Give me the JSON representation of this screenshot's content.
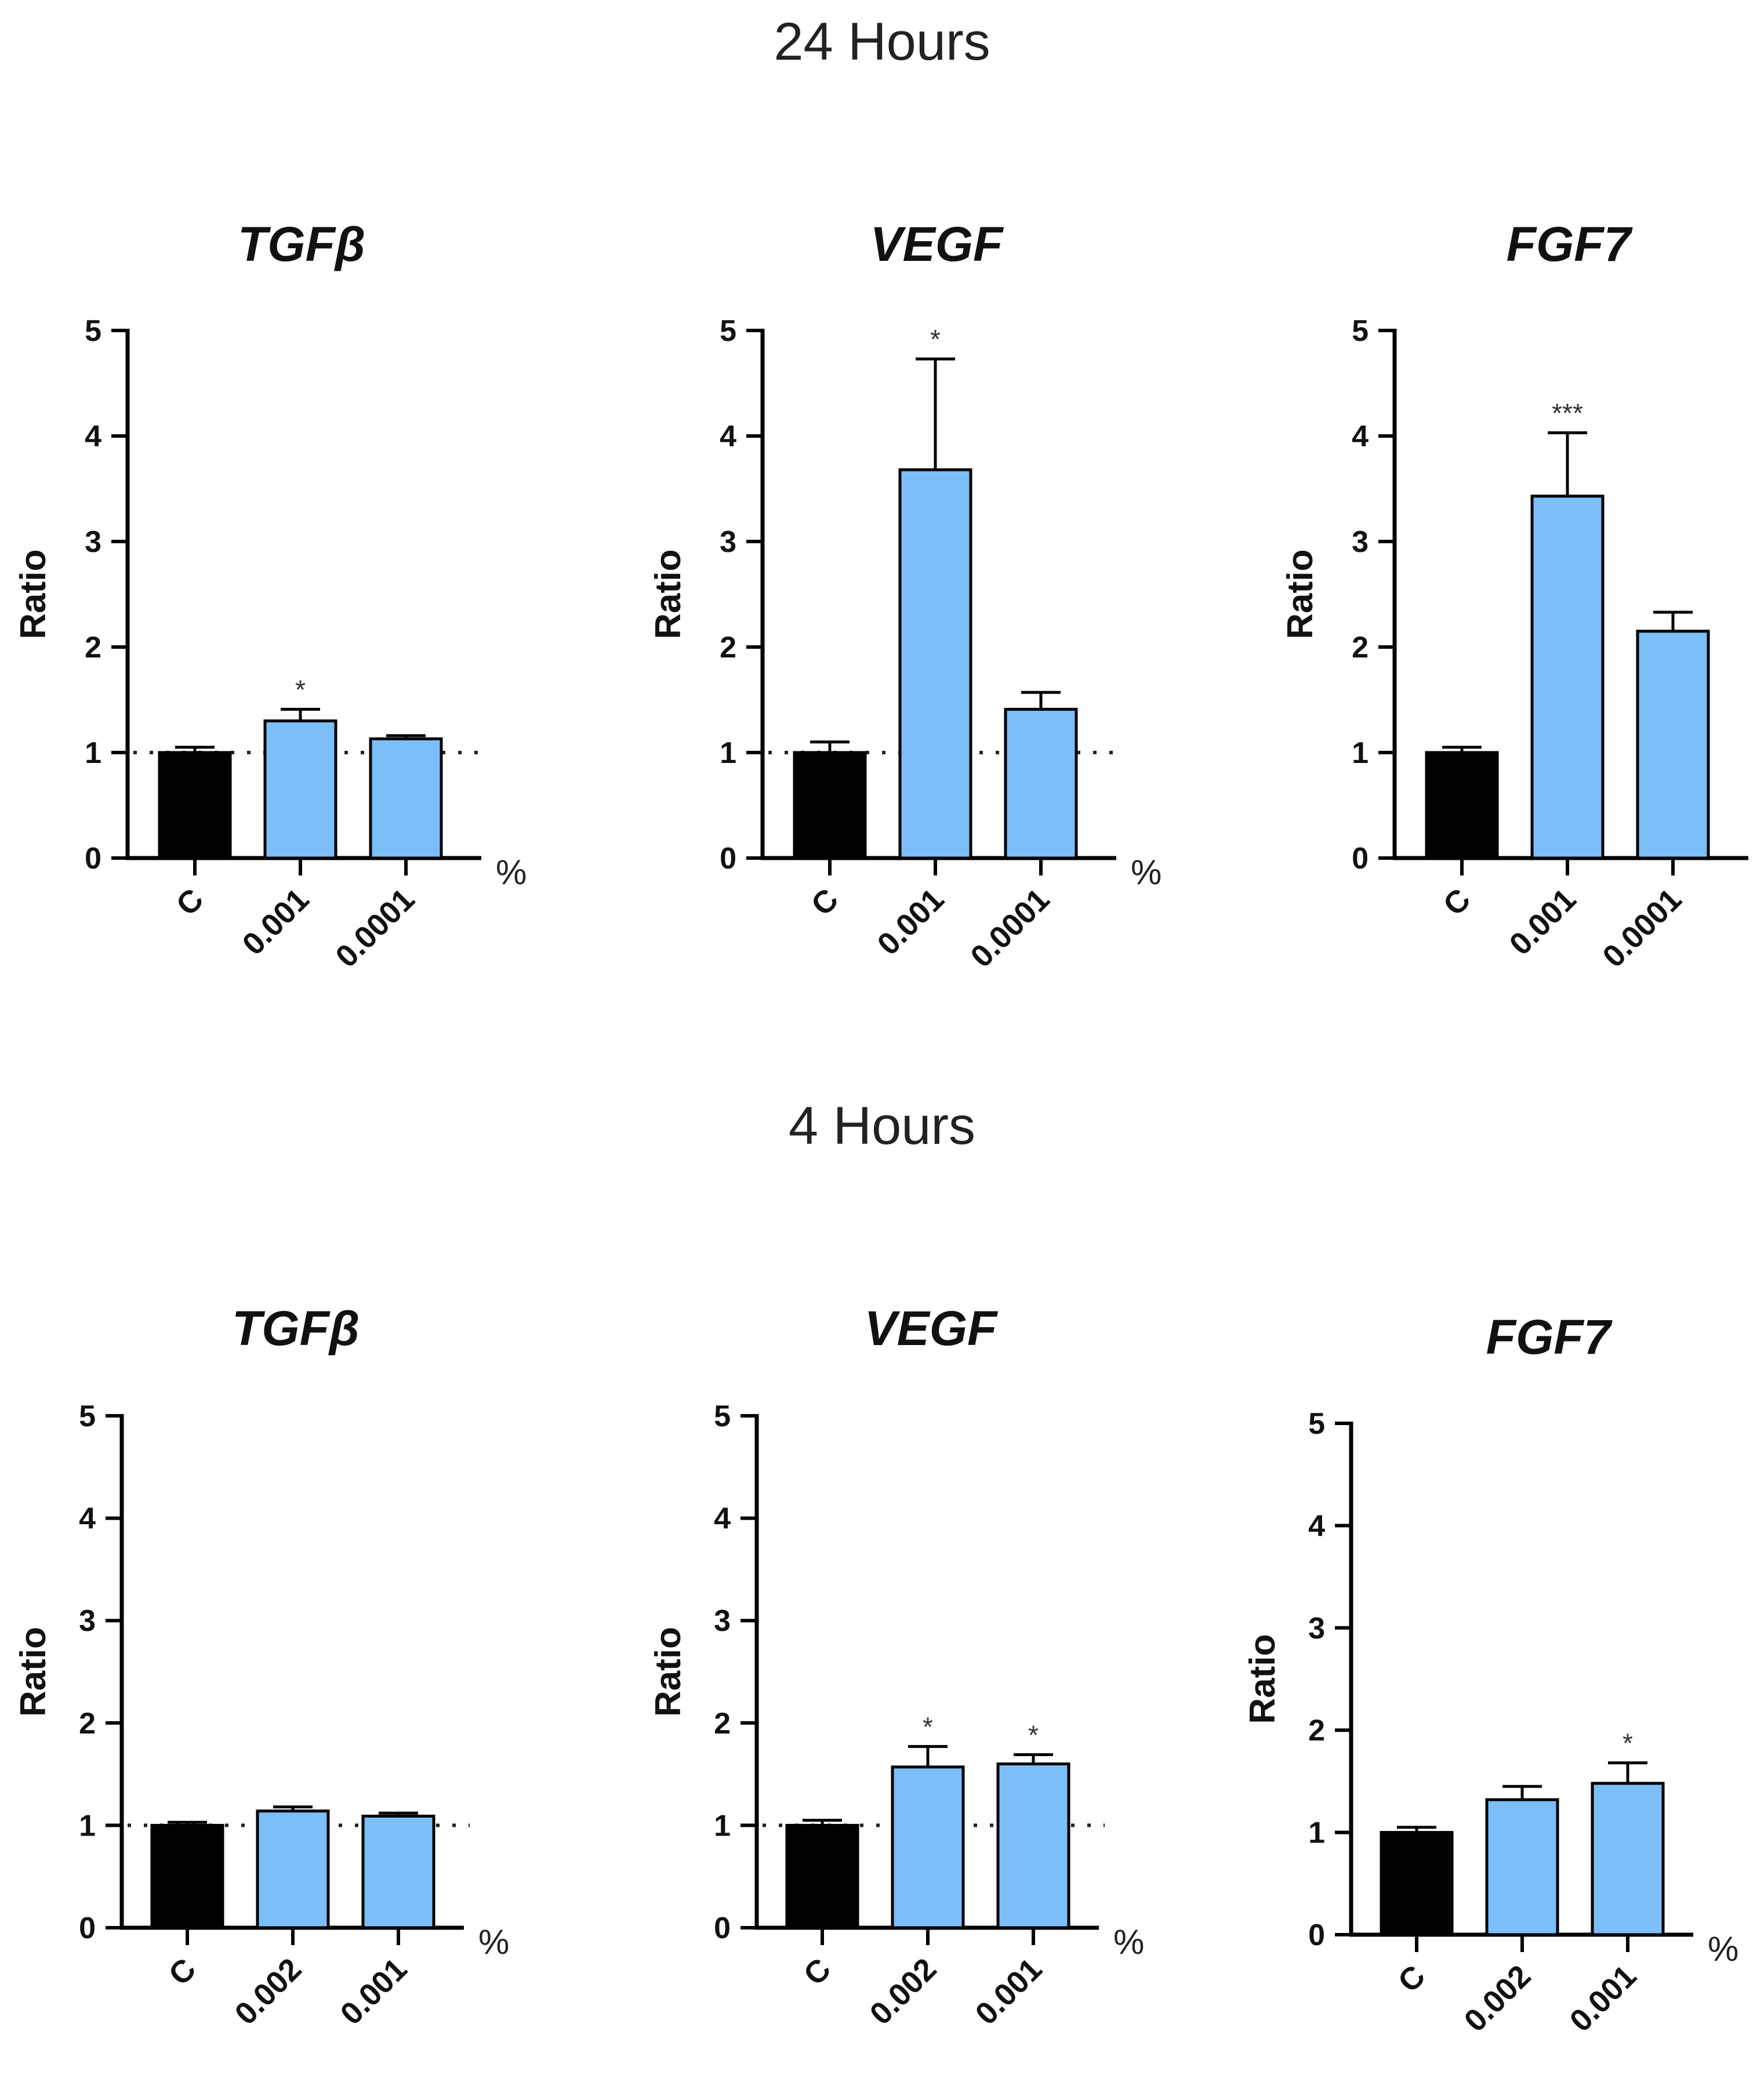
{
  "sections": [
    {
      "title": "24 Hours"
    },
    {
      "title": "4 Hours"
    }
  ],
  "colors": {
    "control": "#000000",
    "treatment": "#7bbef8",
    "axis": "#000000",
    "annotation": "#333333"
  },
  "chart_data": [
    {
      "type": "bar",
      "section": "24 Hours",
      "title": "TGFβ",
      "categories": [
        "C",
        "0.001",
        "0.0001"
      ],
      "values": [
        1.0,
        1.3,
        1.13
      ],
      "error": [
        0.05,
        0.11,
        0.03
      ],
      "significance": [
        "",
        "*",
        ""
      ],
      "ylabel": "Ratio",
      "xunit": "%",
      "ylim": [
        0,
        5
      ],
      "yticks": [
        "0",
        "1",
        "2",
        "3",
        "4",
        "5"
      ],
      "reference_line": 1
    },
    {
      "type": "bar",
      "section": "24 Hours",
      "title": "VEGF",
      "categories": [
        "C",
        "0.001",
        "0.0001"
      ],
      "values": [
        1.0,
        3.68,
        1.41
      ],
      "error": [
        0.1,
        1.05,
        0.16
      ],
      "significance": [
        "",
        "*",
        ""
      ],
      "ylabel": "Ratio",
      "xunit": "%",
      "ylim": [
        0,
        5
      ],
      "yticks": [
        "0",
        "1",
        "2",
        "3",
        "4",
        "5"
      ],
      "reference_line": 1
    },
    {
      "type": "bar",
      "section": "24 Hours",
      "title": "FGF7",
      "categories": [
        "C",
        "0.001",
        "0.0001"
      ],
      "values": [
        1.0,
        3.43,
        2.15
      ],
      "error": [
        0.05,
        0.6,
        0.18
      ],
      "significance": [
        "",
        "***",
        ""
      ],
      "ylabel": "Ratio",
      "xunit": "%",
      "ylim": [
        0,
        5
      ],
      "yticks": [
        "0",
        "1",
        "2",
        "3",
        "4",
        "5"
      ],
      "reference_line": null
    },
    {
      "type": "bar",
      "section": "4 Hours",
      "title": "TGFβ",
      "categories": [
        "C",
        "0.002",
        "0.001"
      ],
      "values": [
        1.0,
        1.14,
        1.09
      ],
      "error": [
        0.03,
        0.04,
        0.03
      ],
      "significance": [
        "",
        "",
        ""
      ],
      "ylabel": "Ratio",
      "xunit": "%",
      "ylim": [
        0,
        5
      ],
      "yticks": [
        "0",
        "1",
        "2",
        "3",
        "4",
        "5"
      ],
      "reference_line": 1
    },
    {
      "type": "bar",
      "section": "4 Hours",
      "title": "VEGF",
      "categories": [
        "C",
        "0.002",
        "0.001"
      ],
      "values": [
        1.0,
        1.57,
        1.6
      ],
      "error": [
        0.05,
        0.2,
        0.09
      ],
      "significance": [
        "",
        "*",
        "*"
      ],
      "ylabel": "Ratio",
      "xunit": "%",
      "ylim": [
        0,
        5
      ],
      "yticks": [
        "0",
        "1",
        "2",
        "3",
        "4",
        "5"
      ],
      "reference_line": 1
    },
    {
      "type": "bar",
      "section": "4 Hours",
      "title": "FGF7",
      "categories": [
        "C",
        "0.002",
        "0.001"
      ],
      "values": [
        1.0,
        1.32,
        1.48
      ],
      "error": [
        0.05,
        0.13,
        0.2
      ],
      "significance": [
        "",
        "",
        "*"
      ],
      "ylabel": "Ratio",
      "xunit": "%",
      "ylim": [
        0,
        5
      ],
      "yticks": [
        "0",
        "1",
        "2",
        "3",
        "4",
        "5"
      ],
      "reference_line": null
    }
  ]
}
